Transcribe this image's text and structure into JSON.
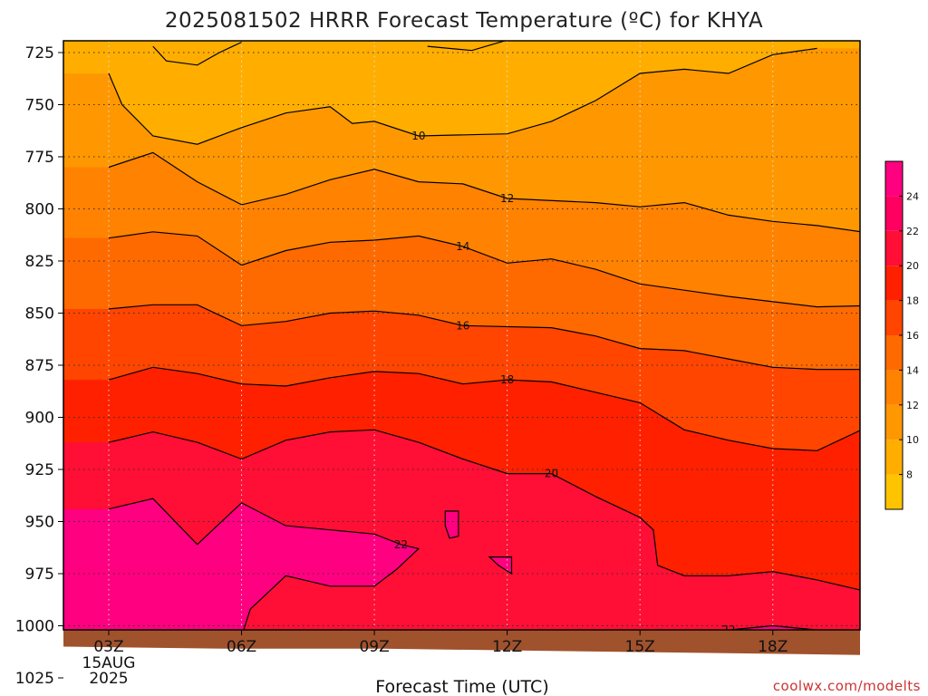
{
  "chart_data": {
    "type": "contour",
    "title": "2025081502 HRRR Forecast Temperature (ºC) for KHYA",
    "xlabel": "Forecast Time (UTC)",
    "ylabel": "",
    "x_ticks": [
      "03Z",
      "06Z",
      "09Z",
      "12Z",
      "15Z",
      "18Z"
    ],
    "x_tick_sublabels": [
      "15AUG",
      "2025"
    ],
    "y_ticks": [
      725,
      750,
      775,
      800,
      825,
      850,
      875,
      900,
      925,
      950,
      975,
      1000,
      1025
    ],
    "y_axis": "pressure (hPa), inverted",
    "colorbar": {
      "levels": [
        8,
        10,
        12,
        14,
        16,
        18,
        20,
        22,
        24
      ],
      "range": [
        6,
        26
      ],
      "colors": [
        "#FFC400",
        "#FFAE00",
        "#FF9800",
        "#FF8200",
        "#FF6A00",
        "#FF4500",
        "#FF2000",
        "#FF0E35",
        "#FF0060",
        "#FF0080"
      ]
    },
    "contours": [
      {
        "level": 10,
        "label": "10",
        "points": [
          [
            1.0,
            735
          ],
          [
            1.3,
            750
          ],
          [
            2.0,
            765
          ],
          [
            3.0,
            769
          ],
          [
            4.0,
            761
          ],
          [
            5.0,
            754
          ],
          [
            6.0,
            751
          ],
          [
            6.5,
            759
          ],
          [
            7.0,
            758
          ],
          [
            8.0,
            765
          ],
          [
            10.0,
            764
          ],
          [
            11.0,
            758
          ],
          [
            12.0,
            748
          ],
          [
            13.0,
            735
          ],
          [
            14.0,
            733
          ],
          [
            15.0,
            735
          ],
          [
            16.0,
            726
          ],
          [
            17.0,
            723
          ]
        ]
      },
      {
        "level": 10,
        "label": "",
        "points": [
          [
            2.0,
            722
          ],
          [
            2.3,
            729
          ],
          [
            3.0,
            731
          ],
          [
            3.5,
            725
          ],
          [
            4.0,
            720
          ]
        ]
      },
      {
        "level": 10,
        "label": "",
        "points": [
          [
            8.2,
            722
          ],
          [
            9.2,
            724
          ],
          [
            10.0,
            719
          ]
        ]
      },
      {
        "level": 12,
        "label": "12",
        "points": [
          [
            1.0,
            780
          ],
          [
            2.0,
            773
          ],
          [
            3.0,
            787
          ],
          [
            4.0,
            798
          ],
          [
            5.0,
            793
          ],
          [
            6.0,
            786
          ],
          [
            7.0,
            781
          ],
          [
            8.0,
            787
          ],
          [
            9.0,
            788
          ],
          [
            10.0,
            795
          ],
          [
            12.0,
            797
          ],
          [
            13.0,
            799
          ],
          [
            14.0,
            797
          ],
          [
            15.0,
            803
          ],
          [
            16.0,
            806
          ],
          [
            17.0,
            808
          ],
          [
            18.0,
            811
          ],
          [
            19.0,
            810
          ]
        ]
      },
      {
        "level": 14,
        "label": "14",
        "points": [
          [
            1.0,
            814
          ],
          [
            2.0,
            811
          ],
          [
            3.0,
            813
          ],
          [
            4.0,
            827
          ],
          [
            5.0,
            820
          ],
          [
            6.0,
            816
          ],
          [
            7.0,
            815
          ],
          [
            8.0,
            813
          ],
          [
            9.0,
            818
          ],
          [
            10.0,
            826
          ],
          [
            11.0,
            824
          ],
          [
            12.0,
            829
          ],
          [
            13.0,
            836
          ],
          [
            15.0,
            842
          ],
          [
            17.0,
            847
          ],
          [
            19.0,
            846
          ]
        ]
      },
      {
        "level": 16,
        "label": "16",
        "points": [
          [
            1.0,
            848
          ],
          [
            2.0,
            846
          ],
          [
            3.0,
            846
          ],
          [
            4.0,
            856
          ],
          [
            5.0,
            854
          ],
          [
            6.0,
            850
          ],
          [
            7.0,
            849
          ],
          [
            8.0,
            851
          ],
          [
            9.0,
            856
          ],
          [
            11.0,
            857
          ],
          [
            12.0,
            861
          ],
          [
            13.0,
            867
          ],
          [
            14.0,
            868
          ],
          [
            15.0,
            872
          ],
          [
            16.0,
            876
          ],
          [
            17.0,
            877
          ],
          [
            19.0,
            877
          ]
        ]
      },
      {
        "level": 18,
        "label": "18",
        "points": [
          [
            1.0,
            882
          ],
          [
            2.0,
            876
          ],
          [
            3.0,
            879
          ],
          [
            4.0,
            884
          ],
          [
            5.0,
            885
          ],
          [
            6.0,
            881
          ],
          [
            7.0,
            878
          ],
          [
            8.0,
            879
          ],
          [
            9.0,
            884
          ],
          [
            10.0,
            882
          ],
          [
            11.0,
            883
          ],
          [
            12.0,
            888
          ],
          [
            13.0,
            893
          ],
          [
            14.0,
            906
          ],
          [
            15.0,
            911
          ],
          [
            16.0,
            915
          ],
          [
            17.0,
            916
          ],
          [
            18.0,
            906
          ],
          [
            19.0,
            905
          ]
        ]
      },
      {
        "level": 20,
        "label": "20",
        "points": [
          [
            1.0,
            912
          ],
          [
            2.0,
            907
          ],
          [
            3.0,
            912
          ],
          [
            4.0,
            920
          ],
          [
            5.0,
            911
          ],
          [
            6.0,
            907
          ],
          [
            7.0,
            906
          ],
          [
            8.0,
            912
          ],
          [
            9.0,
            920
          ],
          [
            10.0,
            927
          ],
          [
            11.0,
            927
          ],
          [
            12.0,
            938
          ],
          [
            13.0,
            948
          ],
          [
            13.3,
            954
          ],
          [
            13.4,
            971
          ],
          [
            14.0,
            976
          ],
          [
            15.0,
            976
          ],
          [
            16.0,
            974
          ],
          [
            17.0,
            978
          ],
          [
            18.0,
            983
          ],
          [
            19.0,
            982
          ]
        ]
      },
      {
        "level": 22,
        "label": "22",
        "points": [
          [
            1.0,
            944
          ],
          [
            2.0,
            939
          ],
          [
            3.0,
            961
          ],
          [
            4.0,
            941
          ],
          [
            5.0,
            952
          ],
          [
            6.0,
            954
          ],
          [
            7.0,
            956
          ],
          [
            7.6,
            961
          ],
          [
            8.0,
            963
          ],
          [
            7.5,
            973
          ],
          [
            7.0,
            981
          ],
          [
            6.0,
            981
          ],
          [
            5.0,
            976
          ],
          [
            4.2,
            992
          ],
          [
            4.0,
            1005
          ]
        ]
      },
      {
        "level": 22,
        "label": "22",
        "points": [
          [
            10.6,
            1013
          ],
          [
            12.0,
            1006
          ],
          [
            13.0,
            1004
          ],
          [
            14.0,
            1003
          ],
          [
            15.0,
            1002
          ],
          [
            16.0,
            1000
          ],
          [
            17.0,
            1002
          ],
          [
            18.0,
            1004
          ],
          [
            19.0,
            1005
          ]
        ]
      },
      {
        "level": 22,
        "label": "",
        "closed": true,
        "points": [
          [
            8.6,
            945
          ],
          [
            8.9,
            945
          ],
          [
            8.9,
            957
          ],
          [
            8.7,
            958
          ],
          [
            8.6,
            952
          ]
        ]
      },
      {
        "level": 22,
        "label": "",
        "closed": true,
        "points": [
          [
            9.6,
            967
          ],
          [
            10.1,
            967
          ],
          [
            10.1,
            975
          ],
          [
            9.8,
            971
          ]
        ]
      }
    ],
    "ground": {
      "color": "#A0522D",
      "surface_pressure": [
        1010,
        1011,
        1011,
        1012,
        1013,
        1014
      ]
    },
    "watermark": "coolwx.com/modelts"
  }
}
